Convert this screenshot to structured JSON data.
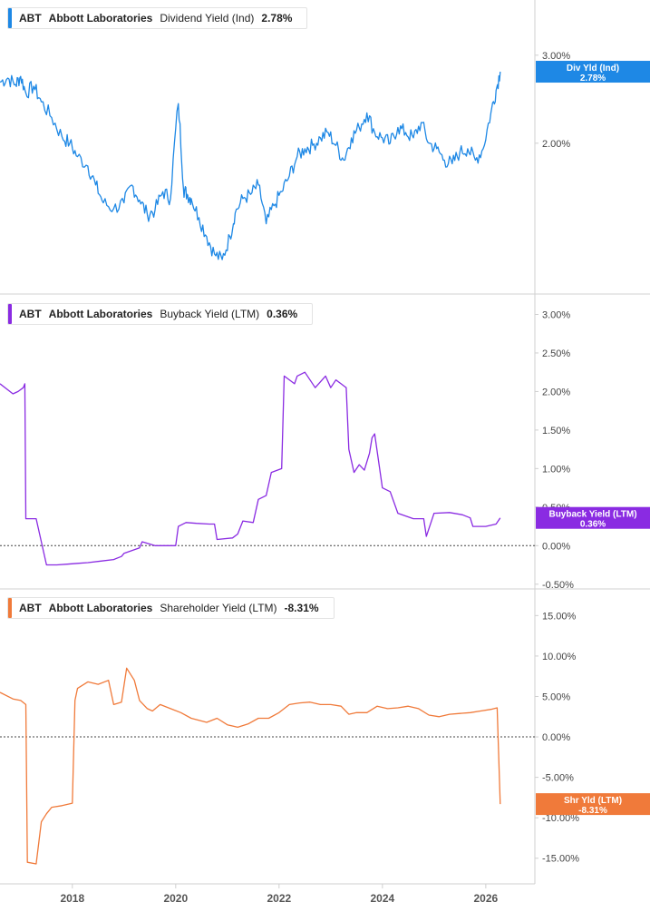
{
  "panels": [
    {
      "ticker": "ABT",
      "company": "Abbott Laboratories",
      "metric": "Dividend Yield (Ind)",
      "value": "2.78%",
      "color": "#1e88e5"
    },
    {
      "ticker": "ABT",
      "company": "Abbott Laboratories",
      "metric": "Buyback Yield (LTM)",
      "value": "0.36%",
      "color": "#8a2be2"
    },
    {
      "ticker": "ABT",
      "company": "Abbott Laboratories",
      "metric": "Shareholder Yield (LTM)",
      "value": "-8.31%",
      "color": "#f07a3a"
    }
  ],
  "x_axis": {
    "ticks": [
      "2018",
      "2020",
      "2022",
      "2024",
      "2026"
    ]
  },
  "chart_data": [
    {
      "type": "line",
      "series": [
        {
          "name": "Dividend Yield (Ind)"
        }
      ],
      "ylim": [
        1.05,
        3.3
      ],
      "y_scale": "log",
      "yticks": [
        "3.00%",
        "2.00%"
      ],
      "tag": "Div Yld (Ind)",
      "tag_value": "2.78%",
      "x": [
        2016.6,
        2016.75,
        2016.9,
        2017.0,
        2017.1,
        2017.25,
        2017.4,
        2017.6,
        2017.8,
        2017.95,
        2018.1,
        2018.3,
        2018.45,
        2018.6,
        2018.8,
        2019.0,
        2019.15,
        2019.3,
        2019.45,
        2019.6,
        2019.75,
        2019.9,
        2020.05,
        2020.15,
        2020.22,
        2020.3,
        2020.45,
        2020.6,
        2020.75,
        2020.9,
        2021.05,
        2021.15,
        2021.3,
        2021.45,
        2021.6,
        2021.75,
        2021.9,
        2022.05,
        2022.2,
        2022.35,
        2022.5,
        2022.65,
        2022.8,
        2022.95,
        2023.1,
        2023.25,
        2023.4,
        2023.55,
        2023.7,
        2023.85,
        2024.0,
        2024.15,
        2024.3,
        2024.45,
        2024.6,
        2024.75,
        2024.9,
        2025.05,
        2025.2,
        2025.35,
        2025.5,
        2025.65,
        2025.8,
        2025.95,
        2026.1,
        2026.2,
        2026.28
      ],
      "values": [
        2.65,
        2.7,
        2.62,
        2.72,
        2.52,
        2.6,
        2.42,
        2.25,
        2.06,
        2.0,
        1.88,
        1.8,
        1.65,
        1.52,
        1.48,
        1.52,
        1.65,
        1.54,
        1.44,
        1.47,
        1.6,
        1.55,
        2.4,
        1.62,
        1.58,
        1.55,
        1.42,
        1.3,
        1.2,
        1.17,
        1.3,
        1.45,
        1.55,
        1.58,
        1.65,
        1.38,
        1.5,
        1.6,
        1.72,
        1.88,
        1.95,
        1.98,
        2.05,
        2.1,
        1.98,
        1.85,
        2.05,
        2.15,
        2.3,
        2.1,
        2.05,
        2.0,
        2.15,
        2.1,
        2.05,
        2.2,
        2.0,
        1.95,
        1.85,
        1.82,
        1.92,
        1.95,
        1.85,
        1.95,
        2.3,
        2.55,
        2.78
      ]
    },
    {
      "type": "line",
      "series": [
        {
          "name": "Buyback Yield (LTM)"
        }
      ],
      "ylim": [
        -0.55,
        3.1
      ],
      "yticks": [
        "3.00%",
        "2.50%",
        "2.00%",
        "1.50%",
        "1.00%",
        "0.50%",
        "0.00%",
        "-0.50%"
      ],
      "tag": "Buyback Yield (LTM)",
      "tag_value": "0.36%",
      "x": [
        2016.6,
        2016.85,
        2016.95,
        2017.05,
        2017.08,
        2017.1,
        2017.3,
        2017.5,
        2017.7,
        2017.9,
        2018.1,
        2018.3,
        2018.55,
        2018.8,
        2018.95,
        2019.0,
        2019.3,
        2019.35,
        2019.6,
        2019.9,
        2020.0,
        2020.05,
        2020.2,
        2020.4,
        2020.65,
        2020.75,
        2020.8,
        2021.1,
        2021.2,
        2021.3,
        2021.5,
        2021.6,
        2021.75,
        2021.85,
        2022.05,
        2022.1,
        2022.3,
        2022.35,
        2022.5,
        2022.7,
        2022.9,
        2023.0,
        2023.1,
        2023.2,
        2023.3,
        2023.35,
        2023.45,
        2023.55,
        2023.65,
        2023.75,
        2023.8,
        2023.85,
        2024.0,
        2024.15,
        2024.3,
        2024.6,
        2024.8,
        2024.85,
        2025.0,
        2025.3,
        2025.55,
        2025.7,
        2025.75,
        2026.0,
        2026.2,
        2026.28
      ],
      "values": [
        2.1,
        1.97,
        2.0,
        2.05,
        2.1,
        0.35,
        0.35,
        -0.25,
        -0.25,
        -0.24,
        -0.23,
        -0.22,
        -0.2,
        -0.18,
        -0.14,
        -0.1,
        -0.03,
        0.05,
        0.0,
        0.0,
        0.0,
        0.25,
        0.3,
        0.29,
        0.28,
        0.28,
        0.08,
        0.1,
        0.15,
        0.32,
        0.3,
        0.6,
        0.65,
        0.95,
        1.0,
        2.2,
        2.1,
        2.2,
        2.25,
        2.05,
        2.2,
        2.05,
        2.15,
        2.1,
        2.05,
        1.25,
        0.95,
        1.05,
        0.98,
        1.2,
        1.4,
        1.45,
        0.75,
        0.7,
        0.42,
        0.35,
        0.35,
        0.12,
        0.42,
        0.43,
        0.4,
        0.36,
        0.25,
        0.25,
        0.28,
        0.36
      ]
    },
    {
      "type": "line",
      "series": [
        {
          "name": "Shareholder Yield (LTM)"
        }
      ],
      "ylim": [
        -17.5,
        16.5
      ],
      "yticks": [
        "15.00%",
        "10.00%",
        "5.00%",
        "0.00%",
        "-5.00%",
        "-10.00%",
        "-15.00%"
      ],
      "tag": "Shr Yld (LTM)",
      "tag_value": "-8.31%",
      "x": [
        2016.6,
        2016.85,
        2017.0,
        2017.1,
        2017.13,
        2017.3,
        2017.4,
        2017.5,
        2017.6,
        2017.8,
        2018.0,
        2018.05,
        2018.1,
        2018.3,
        2018.5,
        2018.7,
        2018.8,
        2018.95,
        2019.05,
        2019.2,
        2019.3,
        2019.45,
        2019.55,
        2019.7,
        2019.9,
        2020.1,
        2020.3,
        2020.6,
        2020.8,
        2021.0,
        2021.2,
        2021.4,
        2021.6,
        2021.8,
        2022.0,
        2022.2,
        2022.4,
        2022.6,
        2022.8,
        2023.0,
        2023.2,
        2023.35,
        2023.5,
        2023.7,
        2023.9,
        2024.1,
        2024.3,
        2024.5,
        2024.7,
        2024.9,
        2025.1,
        2025.3,
        2025.5,
        2025.7,
        2025.9,
        2026.1,
        2026.22,
        2026.28
      ],
      "values": [
        5.5,
        4.7,
        4.5,
        4.0,
        -15.5,
        -15.7,
        -10.5,
        -9.5,
        -8.7,
        -8.5,
        -8.2,
        4.5,
        6.0,
        6.8,
        6.5,
        7.0,
        4.0,
        4.3,
        8.5,
        7.0,
        4.5,
        3.5,
        3.2,
        4.0,
        3.5,
        3.0,
        2.3,
        1.8,
        2.3,
        1.5,
        1.2,
        1.6,
        2.3,
        2.3,
        3.0,
        4.0,
        4.2,
        4.3,
        4.0,
        4.0,
        3.8,
        2.8,
        3.0,
        3.0,
        3.8,
        3.5,
        3.6,
        3.8,
        3.5,
        2.7,
        2.5,
        2.8,
        2.9,
        3.0,
        3.2,
        3.4,
        3.6,
        -8.31
      ]
    }
  ]
}
